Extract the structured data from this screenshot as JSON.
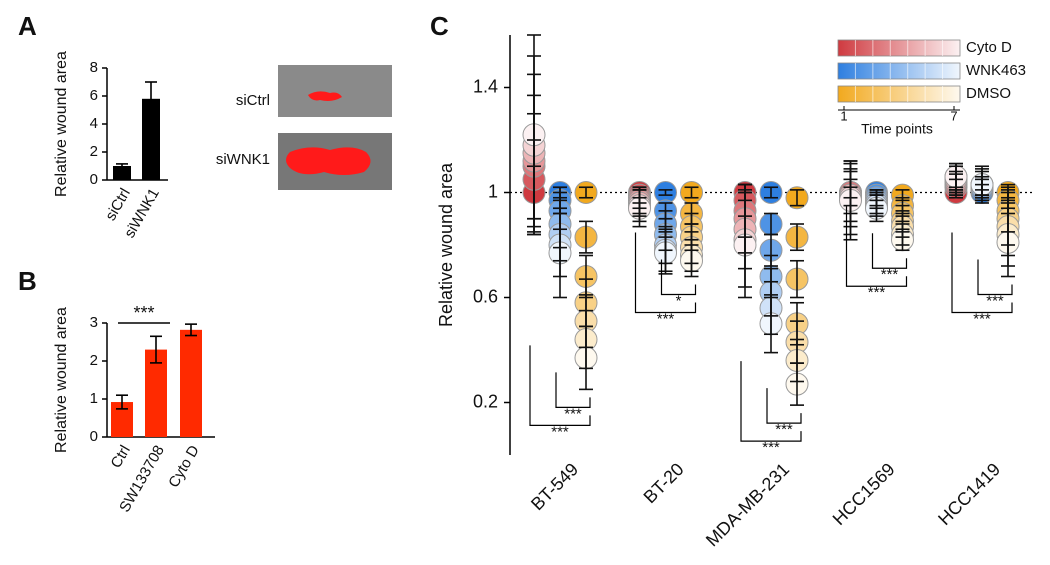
{
  "chart_data": [
    {
      "type": "bar",
      "panel": "A",
      "ylabel": "Relative wound area",
      "categories": [
        "siCtrl",
        "siWNK1"
      ],
      "values": [
        1.0,
        5.8
      ],
      "errors": [
        0.15,
        1.2
      ],
      "color": "#000000",
      "ylim": [
        0,
        8
      ],
      "yticks": [
        0,
        2,
        4,
        6,
        8
      ],
      "image_labels": [
        "siCtrl",
        "siWNK1"
      ]
    },
    {
      "type": "bar",
      "panel": "B",
      "ylabel": "Relative wound area",
      "categories": [
        "Ctrl",
        "SW133708",
        "Cyto D"
      ],
      "values": [
        0.92,
        2.3,
        2.82
      ],
      "errors": [
        0.18,
        0.35,
        0.15
      ],
      "color": "#ff2a00",
      "ylim": [
        0,
        3
      ],
      "yticks": [
        0,
        1,
        2,
        3
      ],
      "significance": "***"
    },
    {
      "type": "dot",
      "panel": "C",
      "ylabel": "Relative wound area",
      "categories": [
        "BT-549",
        "BT-20",
        "MDA-MB-231",
        "HCC1569",
        "HCC1419"
      ],
      "ylim": [
        0,
        1.6
      ],
      "yticks": [
        0.2,
        0.6,
        1,
        1.4
      ],
      "reference_line": 1,
      "legend_title": "Time points",
      "time_ticks": [
        1,
        7
      ],
      "series": [
        {
          "name": "Cyto D",
          "color": "#cf3a40",
          "values": [
            [
              1.0,
              1.05,
              1.1,
              1.12,
              1.15,
              1.18,
              1.22
            ],
            [
              1.0,
              0.99,
              0.98,
              0.97,
              0.96,
              0.95,
              0.94
            ],
            [
              1.0,
              0.97,
              0.93,
              0.9,
              0.86,
              0.82,
              0.8
            ],
            [
              1.0,
              1.0,
              1.0,
              0.99,
              0.99,
              0.98,
              0.97
            ],
            [
              1.0,
              1.02,
              1.03,
              1.04,
              1.05,
              1.06,
              1.06
            ]
          ],
          "errors": [
            [
              0.1,
              0.15,
              0.2,
              0.25,
              0.3,
              0.34,
              0.38
            ],
            [
              0.02,
              0.03,
              0.04,
              0.05,
              0.05,
              0.06,
              0.07
            ],
            [
              0.03,
              0.06,
              0.1,
              0.13,
              0.15,
              0.18,
              0.2
            ],
            [
              0.02,
              0.05,
              0.08,
              0.1,
              0.12,
              0.14,
              0.15
            ],
            [
              0.02,
              0.03,
              0.04,
              0.04,
              0.05,
              0.05,
              0.05
            ]
          ]
        },
        {
          "name": "WNK463",
          "color": "#2e7fe0",
          "values": [
            [
              1.0,
              0.97,
              0.93,
              0.88,
              0.84,
              0.8,
              0.77
            ],
            [
              1.0,
              0.93,
              0.88,
              0.84,
              0.8,
              0.78,
              0.77
            ],
            [
              1.0,
              0.88,
              0.78,
              0.68,
              0.62,
              0.56,
              0.5
            ],
            [
              1.0,
              0.99,
              0.98,
              0.97,
              0.96,
              0.95,
              0.94
            ],
            [
              1.0,
              1.01,
              1.02,
              1.02,
              1.03,
              1.03,
              1.03
            ]
          ],
          "errors": [
            [
              0.02,
              0.05,
              0.07,
              0.09,
              0.1,
              0.12,
              0.17
            ],
            [
              0.01,
              0.03,
              0.05,
              0.06,
              0.07,
              0.08,
              0.08
            ],
            [
              0.02,
              0.04,
              0.06,
              0.08,
              0.09,
              0.1,
              0.11
            ],
            [
              0.01,
              0.02,
              0.03,
              0.03,
              0.04,
              0.04,
              0.05
            ],
            [
              0.01,
              0.02,
              0.03,
              0.04,
              0.05,
              0.06,
              0.07
            ]
          ]
        },
        {
          "name": "DMSO",
          "color": "#f2a91e",
          "values": [
            [
              1.0,
              0.83,
              0.68,
              0.58,
              0.51,
              0.44,
              0.37
            ],
            [
              1.0,
              0.92,
              0.87,
              0.83,
              0.79,
              0.76,
              0.74
            ],
            [
              0.98,
              0.83,
              0.67,
              0.5,
              0.43,
              0.36,
              0.27
            ],
            [
              0.99,
              0.95,
              0.92,
              0.89,
              0.87,
              0.84,
              0.82
            ],
            [
              1.0,
              0.97,
              0.93,
              0.9,
              0.87,
              0.84,
              0.81
            ]
          ],
          "errors": [
            [
              0.02,
              0.06,
              0.08,
              0.09,
              0.1,
              0.11,
              0.12
            ],
            [
              0.02,
              0.04,
              0.05,
              0.05,
              0.06,
              0.06,
              0.06
            ],
            [
              0.03,
              0.05,
              0.07,
              0.08,
              0.08,
              0.08,
              0.08
            ],
            [
              0.02,
              0.03,
              0.03,
              0.04,
              0.04,
              0.04,
              0.04
            ],
            [
              0.03,
              0.05,
              0.08,
              0.1,
              0.11,
              0.12,
              0.13
            ]
          ]
        }
      ],
      "significance": [
        [
          "***",
          "***"
        ],
        [
          "*",
          "***"
        ],
        [
          "***",
          "***"
        ],
        [
          "***",
          "***"
        ],
        [
          "***",
          "***"
        ]
      ]
    }
  ]
}
